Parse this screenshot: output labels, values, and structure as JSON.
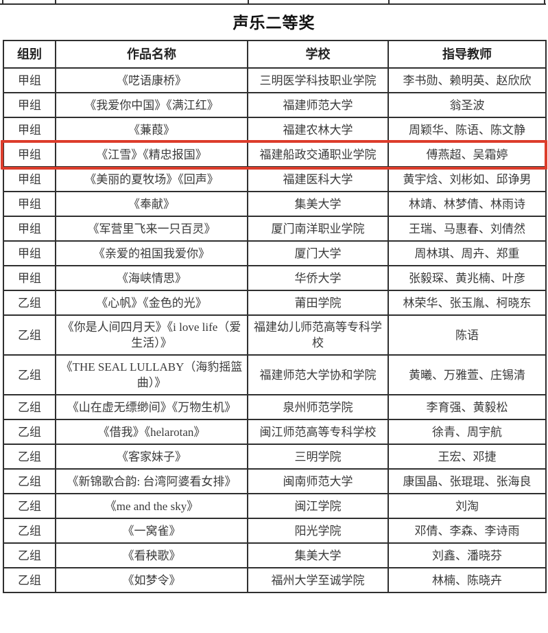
{
  "page": {
    "title": "声乐二等奖"
  },
  "colors": {
    "highlight_border": "#dc3c2b",
    "table_border": "#2f2f2f",
    "text": "#3a3a3a"
  },
  "table": {
    "headers": [
      "组别",
      "作品名称",
      "学校",
      "指导教师"
    ],
    "rows": [
      {
        "group": "甲组",
        "work": "《呓语康桥》",
        "school": "三明医学科技职业学院",
        "teachers": "李书勋、赖明英、赵欣欣",
        "highlight": false
      },
      {
        "group": "甲组",
        "work": "《我爱你中国》《满江红》",
        "school": "福建师范大学",
        "teachers": "翁圣波",
        "highlight": false
      },
      {
        "group": "甲组",
        "work": "《蒹葭》",
        "school": "福建农林大学",
        "teachers": "周颖华、陈语、陈文静",
        "highlight": false
      },
      {
        "group": "甲组",
        "work": "《江雪》《精忠报国》",
        "school": "福建船政交通职业学院",
        "teachers": "傅燕超、吴霜婷",
        "highlight": true
      },
      {
        "group": "甲组",
        "work": "《美丽的夏牧场》《回声》",
        "school": "福建医科大学",
        "teachers": "黄宇焓、刘彬如、邱诤男",
        "highlight": false
      },
      {
        "group": "甲组",
        "work": "《奉献》",
        "school": "集美大学",
        "teachers": "林靖、林梦倩、林雨诗",
        "highlight": false
      },
      {
        "group": "甲组",
        "work": "《军营里飞来一只百灵》",
        "school": "厦门南洋职业学院",
        "teachers": "王瑞、马惠春、刘倩然",
        "highlight": false
      },
      {
        "group": "甲组",
        "work": "《亲爱的祖国我爱你》",
        "school": "厦门大学",
        "teachers": "周林琪、周卉、郑重",
        "highlight": false
      },
      {
        "group": "甲组",
        "work": "《海峡情思》",
        "school": "华侨大学",
        "teachers": "张毅琛、黄兆楠、叶彦",
        "highlight": false
      },
      {
        "group": "乙组",
        "work": "《心帆》《金色的光》",
        "school": "莆田学院",
        "teachers": "林荣华、张玉胤、柯晓东",
        "highlight": false
      },
      {
        "group": "乙组",
        "work": "《你是人间四月天》《i love life（爱生活）》",
        "school": "福建幼儿师范高等专科学校",
        "teachers": "陈语",
        "highlight": false
      },
      {
        "group": "乙组",
        "work": "《THE SEAL LULLABY（海豹摇篮曲）》",
        "school": "福建师范大学协和学院",
        "teachers": "黄曦、万雅萱、庄锡清",
        "highlight": false
      },
      {
        "group": "乙组",
        "work": "《山在虚无缥缈间》《万物生机》",
        "school": "泉州师范学院",
        "teachers": "李育强、黄毅松",
        "highlight": false
      },
      {
        "group": "乙组",
        "work": "《借我》《helarotan》",
        "school": "闽江师范高等专科学校",
        "teachers": "徐青、周宇航",
        "highlight": false
      },
      {
        "group": "乙组",
        "work": "《客家妹子》",
        "school": "三明学院",
        "teachers": "王宏、邓捷",
        "highlight": false
      },
      {
        "group": "乙组",
        "work": "《新锦歌合韵: 台湾阿婆看女排》",
        "school": "闽南师范大学",
        "teachers": "康国晶、张琨琨、张海良",
        "highlight": false
      },
      {
        "group": "乙组",
        "work": "《me and the sky》",
        "school": "闽江学院",
        "teachers": "刘淘",
        "highlight": false
      },
      {
        "group": "乙组",
        "work": "《一窝雀》",
        "school": "阳光学院",
        "teachers": "邓倩、李森、李诗雨",
        "highlight": false
      },
      {
        "group": "乙组",
        "work": "《看秧歌》",
        "school": "集美大学",
        "teachers": "刘鑫、潘晓芬",
        "highlight": false
      },
      {
        "group": "乙组",
        "work": "《如梦令》",
        "school": "福州大学至诚学院",
        "teachers": "林楠、陈晓卉",
        "highlight": false
      }
    ]
  }
}
